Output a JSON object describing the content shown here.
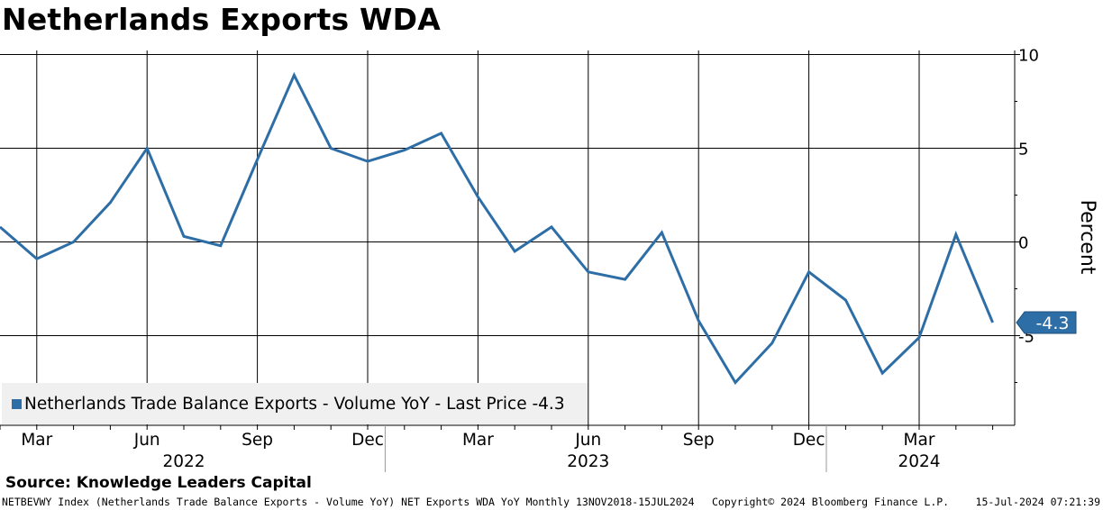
{
  "title": "Netherlands Exports WDA",
  "source": "Source: Knowledge Leaders Capital",
  "footer": {
    "left": "NETBEVWY Index (Netherlands Trade Balance Exports - Volume YoY) NET Exports WDA YoY  Monthly 13NOV2018-15JUL2024",
    "middle": "Copyright© 2024 Bloomberg Finance L.P.",
    "right": "15-Jul-2024 07:21:39"
  },
  "legend": {
    "label": "Netherlands Trade Balance Exports - Volume YoY - Last Price -4.3"
  },
  "colors": {
    "series": "#2e6ea6",
    "grid": "#000000",
    "legend_bg": "#f0f0f0"
  },
  "chart_data": {
    "type": "line",
    "title": "Netherlands Exports WDA",
    "ylabel": "Percent",
    "xlabel": "",
    "ylim": [
      -10,
      10
    ],
    "yticks": [
      10,
      5,
      0,
      -5
    ],
    "ytick_labels": [
      "10",
      "5",
      "0",
      "-5"
    ],
    "last_value_label": "-4.3",
    "month_ticks": [
      "Mar",
      "Jun",
      "Sep",
      "Dec",
      "Mar",
      "Jun",
      "Sep",
      "Dec",
      "Mar"
    ],
    "month_tick_index": [
      1,
      4,
      7,
      10,
      13,
      16,
      19,
      22,
      25
    ],
    "year_labels": [
      "2022",
      "2023",
      "2024"
    ],
    "year_label_index": [
      5,
      16,
      25
    ],
    "year_separators_index": [
      10.5,
      22.5
    ],
    "x": [
      "Feb 2022",
      "Mar 2022",
      "Apr 2022",
      "May 2022",
      "Jun 2022",
      "Jul 2022",
      "Aug 2022",
      "Sep 2022",
      "Oct 2022",
      "Nov 2022",
      "Dec 2022",
      "Jan 2023",
      "Feb 2023",
      "Mar 2023",
      "Apr 2023",
      "May 2023",
      "Jun 2023",
      "Jul 2023",
      "Aug 2023",
      "Sep 2023",
      "Oct 2023",
      "Nov 2023",
      "Dec 2023",
      "Jan 2024",
      "Feb 2024",
      "Mar 2024",
      "Apr 2024",
      "May 2024"
    ],
    "series": [
      {
        "name": "Netherlands Trade Balance Exports - Volume YoY",
        "values": [
          0.8,
          -0.9,
          0.0,
          2.1,
          5.0,
          0.3,
          -0.2,
          4.4,
          8.9,
          5.0,
          4.3,
          4.9,
          5.8,
          2.4,
          -0.5,
          0.8,
          -1.6,
          -2.0,
          0.5,
          -4.2,
          -7.5,
          -5.4,
          -1.6,
          -3.1,
          -7.0,
          -5.1,
          0.4,
          -4.3
        ]
      }
    ]
  }
}
